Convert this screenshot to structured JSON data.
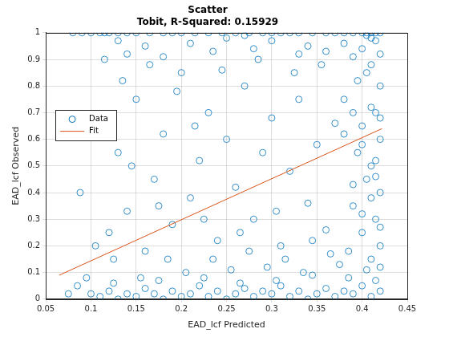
{
  "chart_data": {
    "type": "scatter",
    "title": "Scatter",
    "subtitle": "Tobit, R-Squared: 0.15929",
    "x_label": "EAD_lcf Predicted",
    "y_label": "EAD_lcf Observed",
    "xlim": [
      0.05,
      0.45
    ],
    "xticks": [
      0.05,
      0.1,
      0.15,
      0.2,
      0.25,
      0.3,
      0.35,
      0.4,
      0.45
    ],
    "ylim": [
      0,
      1
    ],
    "yticks": [
      0,
      0.1,
      0.2,
      0.3,
      0.4,
      0.5,
      0.6,
      0.7,
      0.8,
      0.9,
      1
    ],
    "grid": true,
    "legend": "left",
    "series": [
      {
        "name": "Data",
        "type": "scatter",
        "marker": "circle",
        "color": "#0072bd",
        "x": [
          0.08,
          0.09,
          0.1,
          0.11,
          0.115,
          0.12,
          0.13,
          0.14,
          0.15,
          0.165,
          0.18,
          0.19,
          0.2,
          0.215,
          0.23,
          0.245,
          0.26,
          0.275,
          0.29,
          0.3,
          0.31,
          0.32,
          0.33,
          0.345,
          0.36,
          0.37,
          0.38,
          0.39,
          0.4,
          0.405,
          0.41,
          0.415,
          0.42,
          0.13,
          0.16,
          0.21,
          0.25,
          0.28,
          0.3,
          0.34,
          0.36,
          0.38,
          0.4,
          0.41,
          0.42,
          0.39,
          0.33,
          0.27,
          0.14,
          0.18,
          0.235,
          0.415,
          0.405,
          0.1,
          0.11,
          0.12,
          0.13,
          0.14,
          0.15,
          0.16,
          0.17,
          0.18,
          0.19,
          0.2,
          0.21,
          0.22,
          0.23,
          0.24,
          0.25,
          0.26,
          0.27,
          0.28,
          0.29,
          0.3,
          0.31,
          0.32,
          0.33,
          0.34,
          0.35,
          0.36,
          0.37,
          0.38,
          0.39,
          0.4,
          0.41,
          0.42,
          0.125,
          0.175,
          0.225,
          0.265,
          0.305,
          0.345,
          0.385,
          0.415,
          0.155,
          0.205,
          0.255,
          0.295,
          0.335,
          0.375,
          0.405,
          0.41,
          0.42,
          0.4,
          0.415,
          0.39,
          0.42,
          0.405,
          0.41,
          0.395,
          0.42,
          0.4,
          0.415,
          0.38,
          0.42,
          0.405,
          0.41,
          0.385,
          0.4,
          0.42,
          0.39,
          0.415,
          0.38,
          0.41,
          0.395,
          0.42,
          0.41,
          0.4,
          0.42,
          0.415,
          0.39,
          0.088,
          0.12,
          0.13,
          0.14,
          0.15,
          0.16,
          0.17,
          0.18,
          0.19,
          0.2,
          0.21,
          0.22,
          0.23,
          0.24,
          0.25,
          0.26,
          0.27,
          0.28,
          0.29,
          0.3,
          0.31,
          0.32,
          0.33,
          0.34,
          0.35,
          0.36,
          0.37,
          0.355,
          0.325,
          0.285,
          0.245,
          0.195,
          0.165,
          0.135,
          0.115,
          0.145,
          0.185,
          0.215,
          0.235,
          0.275,
          0.315,
          0.365,
          0.345,
          0.305,
          0.265,
          0.225,
          0.175,
          0.125,
          0.105,
          0.095,
          0.085,
          0.075
        ],
        "values": [
          1,
          1,
          1,
          1,
          1,
          1,
          1,
          1,
          1,
          1,
          1,
          1,
          1,
          1,
          1,
          1,
          1,
          1,
          1,
          1,
          1,
          1,
          1,
          1,
          1,
          1,
          1,
          1,
          1,
          1,
          1,
          1,
          1,
          0.97,
          0.95,
          0.96,
          0.98,
          0.94,
          0.97,
          0.95,
          0.93,
          0.96,
          0.94,
          0.98,
          0.92,
          0.91,
          0.92,
          0.99,
          0.92,
          0.91,
          0.93,
          0.97,
          0.99,
          0.02,
          0.01,
          0.03,
          0,
          0.02,
          0.01,
          0.04,
          0.02,
          0,
          0.03,
          0.01,
          0.02,
          0.05,
          0.01,
          0.03,
          0,
          0.02,
          0.04,
          0.01,
          0.03,
          0.02,
          0.05,
          0.01,
          0.03,
          0,
          0.02,
          0.04,
          0.01,
          0.03,
          0.02,
          0.05,
          0.01,
          0.03,
          0.06,
          0.07,
          0.08,
          0.06,
          0.07,
          0.09,
          0.08,
          0.07,
          0.08,
          0.1,
          0.11,
          0.12,
          0.1,
          0.13,
          0.11,
          0.15,
          0.2,
          0.25,
          0.3,
          0.35,
          0.4,
          0.45,
          0.5,
          0.55,
          0.6,
          0.65,
          0.7,
          0.75,
          0.8,
          0.85,
          0.88,
          0.18,
          0.32,
          0.27,
          0.43,
          0.52,
          0.62,
          0.72,
          0.82,
          0.12,
          0.38,
          0.58,
          0.68,
          0.46,
          0.7,
          0.4,
          0.25,
          0.55,
          0.33,
          0.75,
          0.18,
          0.45,
          0.62,
          0.28,
          0.85,
          0.38,
          0.52,
          0.7,
          0.22,
          0.6,
          0.42,
          0.8,
          0.3,
          0.55,
          0.68,
          0.2,
          0.48,
          0.75,
          0.36,
          0.58,
          0.26,
          0.66,
          0.88,
          0.85,
          0.9,
          0.86,
          0.78,
          0.88,
          0.82,
          0.9,
          0.5,
          0.15,
          0.65,
          0.15,
          0.18,
          0.15,
          0.17,
          0.22,
          0.33,
          0.25,
          0.3,
          0.35,
          0.15,
          0.2,
          0.08,
          0.05,
          0.02
        ]
      },
      {
        "name": "Fit",
        "type": "line",
        "line_style": "solid",
        "color": "#d95319",
        "x": [
          0.065,
          0.422
        ],
        "values": [
          0.09,
          0.64
        ]
      }
    ]
  }
}
